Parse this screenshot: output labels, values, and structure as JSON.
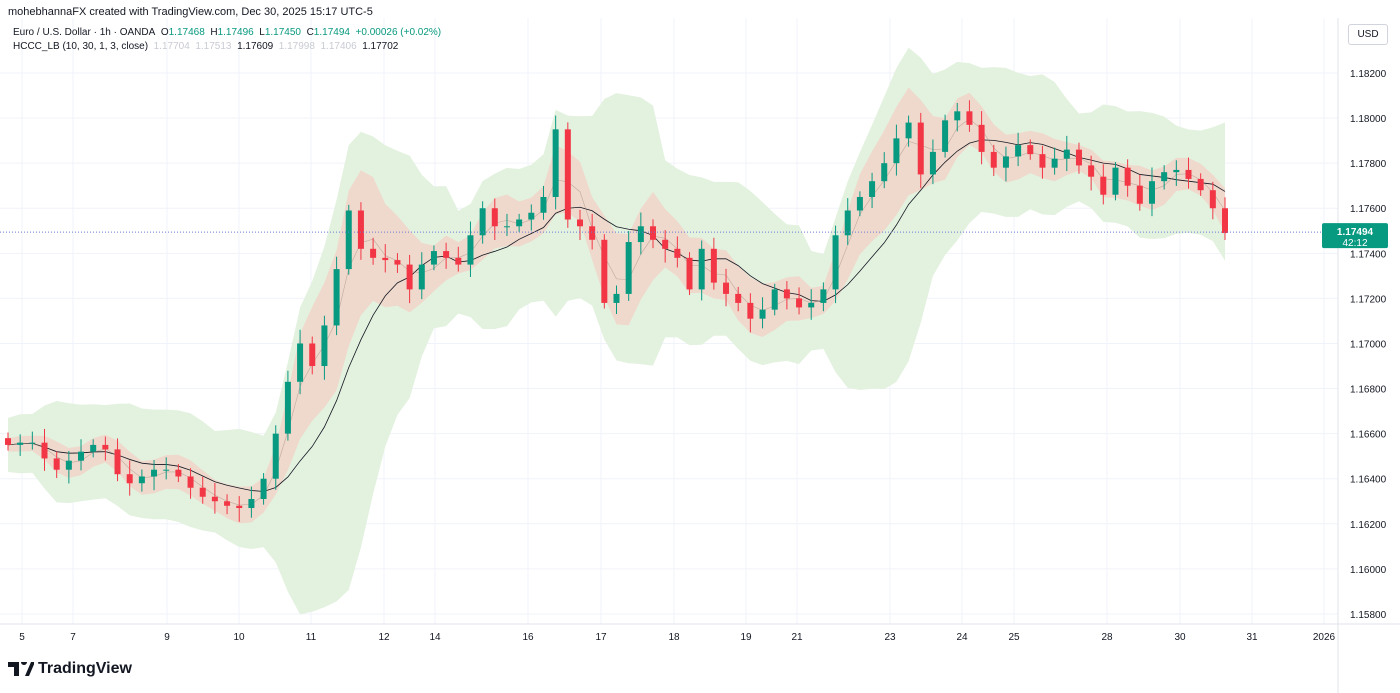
{
  "credit": "mohebhannaFX created with TradingView.com, Dec 30, 2025 15:17 UTC-5",
  "legend": {
    "symbol": "Euro / U.S. Dollar · 1h · OANDA",
    "o_label": "O",
    "o": "1.17468",
    "h_label": "H",
    "h": "1.17496",
    "l_label": "L",
    "l": "1.17450",
    "c_label": "C",
    "c": "1.17494",
    "change": "+0.00026 (+0.02%)",
    "indicator": "HCCC_LB (10, 30, 1, 3, close)",
    "ind_values": [
      "1.17704",
      "1.17513",
      "1.17609",
      "1.17998",
      "1.17406",
      "1.17702"
    ]
  },
  "currency_button": "USD",
  "price_label": {
    "price": "1.17494",
    "countdown": "42:12",
    "color": "#089981"
  },
  "brand": "TradingView",
  "colors": {
    "up": "#089981",
    "down": "#f23645",
    "outer_band": "#e3f1df",
    "inner_band": "#efd9cc",
    "slow_line": "#131722"
  },
  "chart_data": {
    "type": "candlestick",
    "title": "",
    "ylim": [
      1.1575,
      1.1825
    ],
    "y_ticks": [
      "1.18200",
      "1.18000",
      "1.17800",
      "1.17600",
      "1.17400",
      "1.17200",
      "1.17000",
      "1.16800",
      "1.16600",
      "1.16400",
      "1.16200",
      "1.16000",
      "1.15800"
    ],
    "x_ticks": [
      "5",
      "7",
      "9",
      "10",
      "11",
      "12",
      "14",
      "16",
      "17",
      "18",
      "19",
      "21",
      "23",
      "24",
      "25",
      "28",
      "30",
      "31",
      "2026"
    ],
    "grid": true,
    "last_price": 1.17494,
    "closes": [
      1.1655,
      1.1656,
      1.1656,
      1.1649,
      1.1644,
      1.1648,
      1.1652,
      1.1655,
      1.1653,
      1.1642,
      1.1638,
      1.1641,
      1.1644,
      1.1644,
      1.1641,
      1.1636,
      1.1632,
      1.163,
      1.1628,
      1.1627,
      1.1631,
      1.164,
      1.166,
      1.1683,
      1.17,
      1.169,
      1.1708,
      1.1733,
      1.1759,
      1.1742,
      1.1738,
      1.1737,
      1.1735,
      1.1724,
      1.1735,
      1.1741,
      1.1738,
      1.1735,
      1.1748,
      1.176,
      1.1752,
      1.1752,
      1.1755,
      1.1758,
      1.1765,
      1.1795,
      1.1755,
      1.1752,
      1.1746,
      1.1718,
      1.1722,
      1.1745,
      1.1752,
      1.1746,
      1.1742,
      1.1738,
      1.1724,
      1.1742,
      1.1727,
      1.1722,
      1.1718,
      1.1711,
      1.1715,
      1.1724,
      1.172,
      1.1716,
      1.1718,
      1.1724,
      1.1748,
      1.1759,
      1.1765,
      1.1772,
      1.178,
      1.1791,
      1.1798,
      1.1775,
      1.1785,
      1.1799,
      1.1803,
      1.1797,
      1.1785,
      1.1778,
      1.1783,
      1.1788,
      1.1784,
      1.1778,
      1.1782,
      1.1786,
      1.1779,
      1.1774,
      1.1766,
      1.1778,
      1.177,
      1.1762,
      1.1772,
      1.1776,
      1.1777,
      1.1773,
      1.1768,
      1.176,
      1.1749
    ]
  }
}
